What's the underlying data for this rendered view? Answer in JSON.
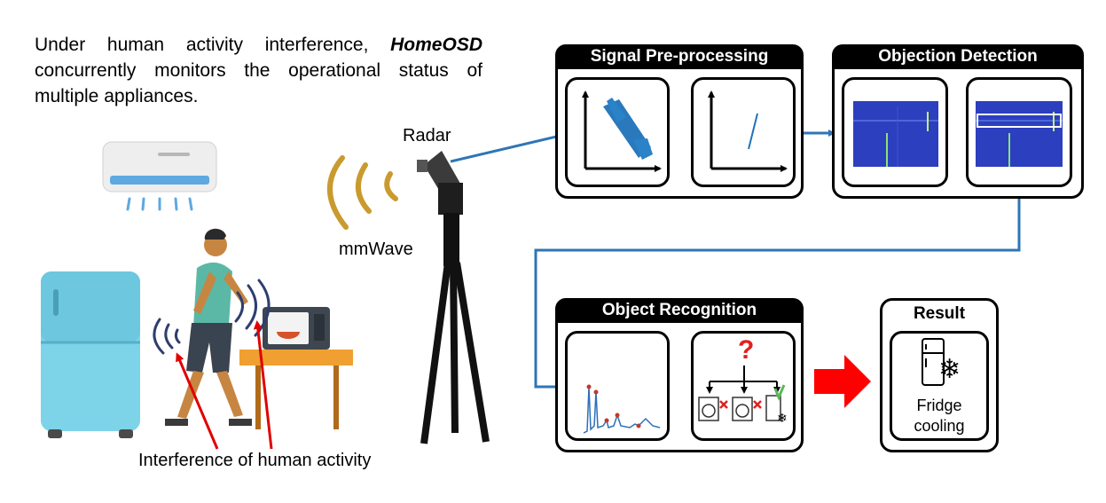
{
  "intro": {
    "before": "Under human activity interference, ",
    "brand": "HomeOSD",
    "after": " concurrently monitors the operational status of multiple appliances."
  },
  "labels": {
    "radar": "Radar",
    "mmwave": "mmWave",
    "interference": "Interference of human activity"
  },
  "panels": {
    "preprocessing": "Signal Pre-processing",
    "detection": "Objection Detection",
    "recognition": "Object Recognition",
    "result": "Result"
  },
  "result": {
    "line1": "Fridge",
    "line2": "cooling"
  },
  "colors": {
    "flow_arrow": "#2E75B6",
    "red_arrow": "#FF0000",
    "spectrum_bg": "#2B3FBF",
    "wave": "#C99A2E",
    "fridge": "#7DD3E8",
    "shirt": "#5BB8A6"
  },
  "icons": [
    "air-conditioner-icon",
    "fridge-icon",
    "microwave-icon",
    "person-walking-icon",
    "radar-tripod-icon",
    "question-mark-icon",
    "washing-machine-icon",
    "snowflake-icon"
  ]
}
